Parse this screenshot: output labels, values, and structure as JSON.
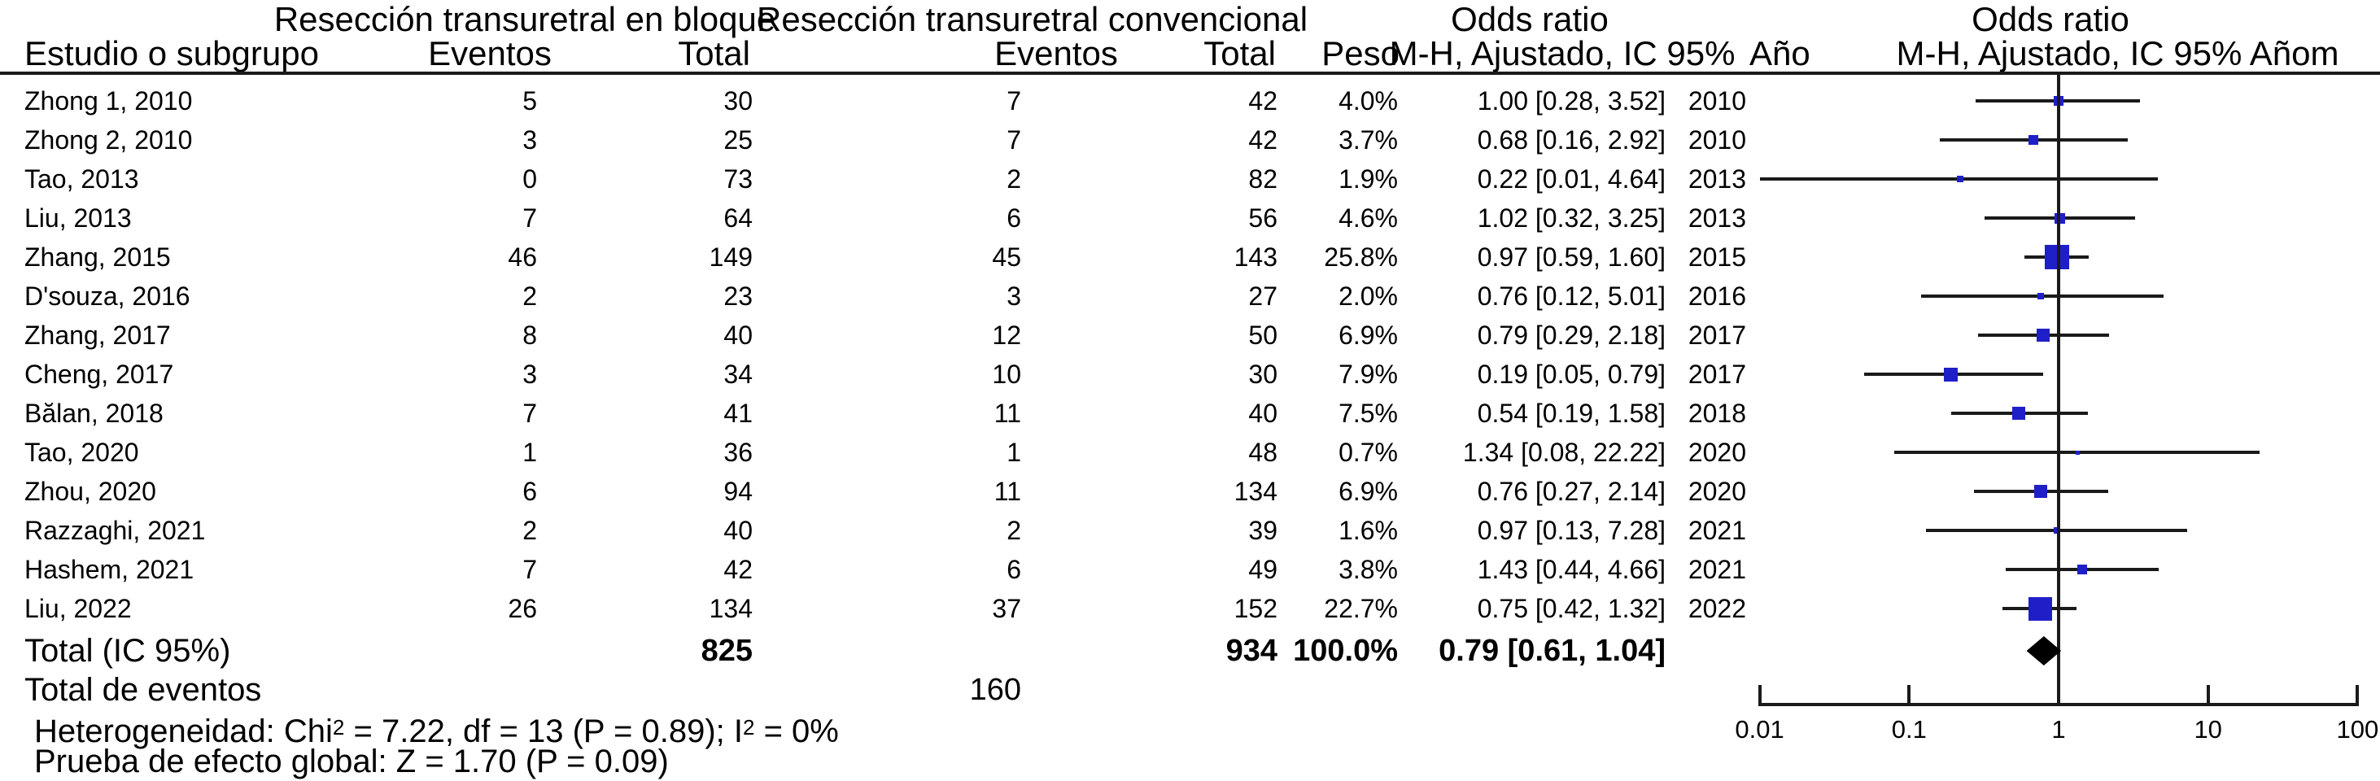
{
  "header": {
    "group1": "Resección transuretral en bloque",
    "group2": "Resección transuretral convencional",
    "study_col": "Estudio o subgrupo",
    "events_col": "Eventos",
    "total_col": "Total",
    "weight_col": "Peso",
    "or_title_left": "Odds ratio",
    "or_sub_left": "M-H, Ajustado, IC 95%",
    "year_col": "Año",
    "or_title_right": "Odds ratio",
    "or_sub_right": "M-H, Ajustado, IC 95%  Añom"
  },
  "totals": {
    "label": "Total (IC 95%)",
    "total_bloque": "825",
    "total_conv": "934",
    "weight": "100.0%",
    "or_text": "0.79 [0.61, 1.04]",
    "or": 0.79,
    "ci_low": 0.61,
    "ci_high": 1.04
  },
  "total_events": {
    "label": "Total de eventos",
    "events_conv": "160"
  },
  "footer": {
    "het_parts": [
      "Heterogeneidad: Chi",
      "2",
      " = 7.22, df = 13 (P = 0.89); I",
      "2",
      " = 0%"
    ],
    "effect_test": "Prueba de efecto global: Z = 1.70 (P = 0.09)"
  },
  "colors": {
    "square": "#1f1fc8",
    "diamond": "#000000",
    "line": "#1a1a1a"
  },
  "chart_data": {
    "type": "forest",
    "effect_measure": "Odds ratio, M-H, Ajustado, IC 95%",
    "x_scale": "log10",
    "xlim": [
      0.01,
      100
    ],
    "x_ticks": [
      "0.01",
      "0.1",
      "1",
      "10",
      "100"
    ],
    "null_line": 1,
    "studies": [
      {
        "name": "Zhong 1, 2010",
        "events_bloque": "5",
        "total_bloque": "30",
        "events_conv": "7",
        "total_conv": "42",
        "weight": "4.0%",
        "weight_pct": 4.0,
        "or": 1.0,
        "ci_low": 0.28,
        "ci_high": 3.52,
        "or_text": "1.00 [0.28, 3.52]",
        "year": "2010"
      },
      {
        "name": "Zhong 2, 2010",
        "events_bloque": "3",
        "total_bloque": "25",
        "events_conv": "7",
        "total_conv": "42",
        "weight": "3.7%",
        "weight_pct": 3.7,
        "or": 0.68,
        "ci_low": 0.16,
        "ci_high": 2.92,
        "or_text": "0.68 [0.16, 2.92]",
        "year": "2010"
      },
      {
        "name": "Tao, 2013",
        "events_bloque": "0",
        "total_bloque": "73",
        "events_conv": "2",
        "total_conv": "82",
        "weight": "1.9%",
        "weight_pct": 1.9,
        "or": 0.22,
        "ci_low": 0.01,
        "ci_high": 4.64,
        "or_text": "0.22 [0.01, 4.64]",
        "year": "2013"
      },
      {
        "name": "Liu, 2013",
        "events_bloque": "7",
        "total_bloque": "64",
        "events_conv": "6",
        "total_conv": "56",
        "weight": "4.6%",
        "weight_pct": 4.6,
        "or": 1.02,
        "ci_low": 0.32,
        "ci_high": 3.25,
        "or_text": "1.02 [0.32, 3.25]",
        "year": "2013"
      },
      {
        "name": "Zhang, 2015",
        "events_bloque": "46",
        "total_bloque": "149",
        "events_conv": "45",
        "total_conv": "143",
        "weight": "25.8%",
        "weight_pct": 25.8,
        "or": 0.97,
        "ci_low": 0.59,
        "ci_high": 1.6,
        "or_text": "0.97 [0.59, 1.60]",
        "year": "2015"
      },
      {
        "name": "D'souza, 2016",
        "events_bloque": "2",
        "total_bloque": "23",
        "events_conv": "3",
        "total_conv": "27",
        "weight": "2.0%",
        "weight_pct": 2.0,
        "or": 0.76,
        "ci_low": 0.12,
        "ci_high": 5.01,
        "or_text": "0.76 [0.12, 5.01]",
        "year": "2016"
      },
      {
        "name": "Zhang, 2017",
        "events_bloque": "8",
        "total_bloque": "40",
        "events_conv": "12",
        "total_conv": "50",
        "weight": "6.9%",
        "weight_pct": 6.9,
        "or": 0.79,
        "ci_low": 0.29,
        "ci_high": 2.18,
        "or_text": "0.79 [0.29, 2.18]",
        "year": "2017"
      },
      {
        "name": "Cheng, 2017",
        "events_bloque": "3",
        "total_bloque": "34",
        "events_conv": "10",
        "total_conv": "30",
        "weight": "7.9%",
        "weight_pct": 7.9,
        "or": 0.19,
        "ci_low": 0.05,
        "ci_high": 0.79,
        "or_text": "0.19 [0.05, 0.79]",
        "year": "2017"
      },
      {
        "name": "Bălan, 2018",
        "events_bloque": "7",
        "total_bloque": "41",
        "events_conv": "11",
        "total_conv": "40",
        "weight": "7.5%",
        "weight_pct": 7.5,
        "or": 0.54,
        "ci_low": 0.19,
        "ci_high": 1.58,
        "or_text": "0.54 [0.19, 1.58]",
        "year": "2018"
      },
      {
        "name": "Tao, 2020",
        "events_bloque": "1",
        "total_bloque": "36",
        "events_conv": "1",
        "total_conv": "48",
        "weight": "0.7%",
        "weight_pct": 0.7,
        "or": 1.34,
        "ci_low": 0.08,
        "ci_high": 22.22,
        "or_text": "1.34 [0.08, 22.22]",
        "year": "2020"
      },
      {
        "name": "Zhou, 2020",
        "events_bloque": "6",
        "total_bloque": "94",
        "events_conv": "11",
        "total_conv": "134",
        "weight": "6.9%",
        "weight_pct": 6.9,
        "or": 0.76,
        "ci_low": 0.27,
        "ci_high": 2.14,
        "or_text": "0.76 [0.27, 2.14]",
        "year": "2020"
      },
      {
        "name": "Razzaghi, 2021",
        "events_bloque": "2",
        "total_bloque": "40",
        "events_conv": "2",
        "total_conv": "39",
        "weight": "1.6%",
        "weight_pct": 1.6,
        "or": 0.97,
        "ci_low": 0.13,
        "ci_high": 7.28,
        "or_text": "0.97 [0.13, 7.28]",
        "year": "2021"
      },
      {
        "name": "Hashem, 2021",
        "events_bloque": "7",
        "total_bloque": "42",
        "events_conv": "6",
        "total_conv": "49",
        "weight": "3.8%",
        "weight_pct": 3.8,
        "or": 1.43,
        "ci_low": 0.44,
        "ci_high": 4.66,
        "or_text": "1.43 [0.44, 4.66]",
        "year": "2021"
      },
      {
        "name": "Liu, 2022",
        "events_bloque": "26",
        "total_bloque": "134",
        "events_conv": "37",
        "total_conv": "152",
        "weight": "22.7%",
        "weight_pct": 22.7,
        "or": 0.75,
        "ci_low": 0.42,
        "ci_high": 1.32,
        "or_text": "0.75 [0.42, 1.32]",
        "year": "2022"
      }
    ],
    "total": {
      "or": 0.79,
      "ci_low": 0.61,
      "ci_high": 1.04,
      "weight_pct": 100.0,
      "total_bloque": 825,
      "total_conv": 934,
      "total_events_conv": 160
    },
    "heterogeneity": "Chi2 = 7.22, df = 13 (P = 0.89); I2 = 0%",
    "overall_effect": "Z = 1.70 (P = 0.09)"
  }
}
